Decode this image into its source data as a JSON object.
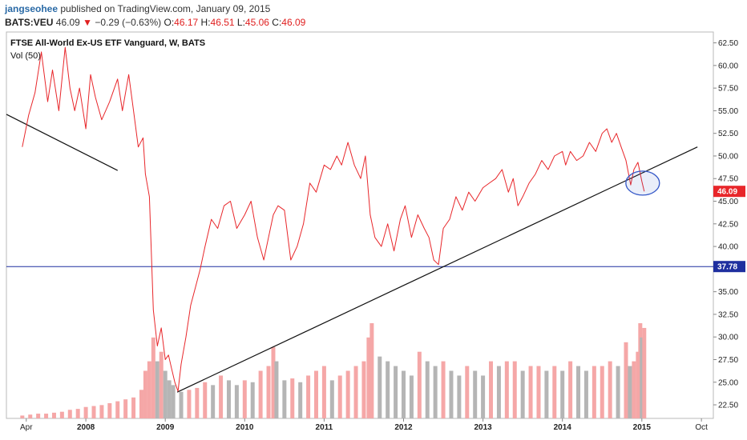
{
  "header": {
    "author": "jangseohee",
    "published": "published on TradingView.com, January 09, 2015",
    "symbol": "BATS:VEU",
    "last": "46.09",
    "change_arrow": "▼",
    "change": "−0.29 (−0.63%)",
    "open_label": "O:",
    "open": "46.17",
    "high_label": "H:",
    "high": "46.51",
    "low_label": "L:",
    "low": "45.06",
    "close_label": "C:",
    "close": "46.09"
  },
  "colors": {
    "price_line": "#e8262a",
    "trend_line": "#111111",
    "horizontal_line": "#1f2f9f",
    "circle": "#3558c8",
    "volume_up": "#f5a7a7",
    "volume_down": "#b5b5b5",
    "last_badge": "#e8262a",
    "level_badge": "#1f2f9f"
  },
  "chart_data": {
    "type": "line",
    "title": "FTSE All-World Ex-US ETF Vanguard, W, BATS",
    "subtitle": "Vol (50)",
    "x_ticks": [
      "Apr",
      "2008",
      "2009",
      "2010",
      "2011",
      "2012",
      "2013",
      "2014",
      "2015",
      "Oct"
    ],
    "x_tick_values": [
      2007.25,
      2008.0,
      2009.0,
      2010.0,
      2011.0,
      2012.0,
      2013.0,
      2014.0,
      2015.0,
      2015.75
    ],
    "xlim": [
      2007.0,
      2015.9
    ],
    "ylim": [
      21.0,
      63.7
    ],
    "y_ticks": [
      "22.50",
      "25.00",
      "27.50",
      "30.00",
      "32.50",
      "35.00",
      "37.50",
      "40.00",
      "42.50",
      "45.00",
      "47.50",
      "50.00",
      "52.50",
      "55.00",
      "57.50",
      "60.00",
      "62.50"
    ],
    "y_tick_values": [
      22.5,
      25,
      27.5,
      30,
      32.5,
      35,
      37.5,
      40,
      42.5,
      45,
      47.5,
      50,
      52.5,
      55,
      57.5,
      60,
      62.5
    ],
    "last_price_label": "46.09",
    "last_price": 46.09,
    "horizontal_level_label": "37.78",
    "horizontal_level": 37.78,
    "series": [
      {
        "x": [
          2007.2,
          2007.28,
          2007.36,
          2007.44,
          2007.52,
          2007.58,
          2007.66,
          2007.74,
          2007.8,
          2007.86,
          2007.92,
          2008.0,
          2008.06,
          2008.12,
          2008.2,
          2008.3,
          2008.4,
          2008.46,
          2008.54,
          2008.6,
          2008.66,
          2008.72,
          2008.75,
          2008.8,
          2008.85,
          2008.9,
          2008.95,
          2009.0,
          2009.04,
          2009.08,
          2009.12,
          2009.16,
          2009.2,
          2009.26,
          2009.32,
          2009.38,
          2009.44,
          2009.5,
          2009.58,
          2009.66,
          2009.74,
          2009.82,
          2009.9,
          2010.0,
          2010.08,
          2010.16,
          2010.24,
          2010.3,
          2010.36,
          2010.42,
          2010.5,
          2010.58,
          2010.66,
          2010.74,
          2010.82,
          2010.9,
          2011.0,
          2011.08,
          2011.16,
          2011.22,
          2011.3,
          2011.38,
          2011.46,
          2011.52,
          2011.58,
          2011.64,
          2011.72,
          2011.8,
          2011.88,
          2011.96,
          2012.02,
          2012.1,
          2012.18,
          2012.26,
          2012.32,
          2012.38,
          2012.44,
          2012.5,
          2012.58,
          2012.66,
          2012.74,
          2012.82,
          2012.9,
          2013.0,
          2013.08,
          2013.16,
          2013.24,
          2013.32,
          2013.38,
          2013.44,
          2013.5,
          2013.58,
          2013.66,
          2013.74,
          2013.82,
          2013.9,
          2014.0,
          2014.04,
          2014.1,
          2014.18,
          2014.26,
          2014.34,
          2014.42,
          2014.5,
          2014.56,
          2014.62,
          2014.68,
          2014.74,
          2014.8,
          2014.86,
          2014.9,
          2014.95,
          2015.0,
          2015.03
        ],
        "values": [
          51.0,
          54.5,
          57.0,
          61.5,
          56.0,
          59.5,
          55.0,
          62.0,
          57.5,
          55.0,
          57.5,
          53.0,
          59.0,
          56.5,
          54.0,
          56.0,
          58.5,
          55.0,
          59.0,
          55.0,
          51.0,
          52.0,
          48.0,
          45.5,
          33.0,
          29.0,
          31.0,
          27.5,
          28.0,
          26.5,
          25.0,
          24.0,
          27.0,
          30.0,
          33.5,
          35.5,
          37.5,
          40.0,
          43.0,
          42.0,
          44.5,
          45.0,
          42.0,
          43.5,
          45.0,
          41.0,
          38.5,
          41.0,
          43.5,
          44.5,
          44.0,
          38.5,
          40.0,
          42.5,
          47.0,
          46.0,
          49.0,
          48.5,
          50.0,
          49.0,
          51.5,
          49.0,
          47.5,
          50.0,
          43.5,
          41.0,
          40.0,
          42.5,
          39.5,
          43.0,
          44.5,
          41.0,
          43.5,
          42.0,
          41.0,
          38.5,
          38.0,
          42.0,
          43.0,
          45.5,
          44.0,
          46.0,
          45.0,
          46.5,
          47.0,
          47.5,
          48.5,
          46.0,
          47.5,
          44.5,
          45.5,
          47.0,
          48.0,
          49.5,
          48.5,
          50.0,
          50.5,
          49.0,
          50.5,
          49.5,
          50.0,
          51.5,
          50.5,
          52.5,
          53.0,
          51.5,
          52.5,
          51.0,
          49.5,
          46.8,
          48.5,
          49.3,
          47.2,
          46.09
        ]
      }
    ],
    "volume": {
      "x": [
        2007.2,
        2007.3,
        2007.4,
        2007.5,
        2007.6,
        2007.7,
        2007.8,
        2007.9,
        2008.0,
        2008.1,
        2008.2,
        2008.3,
        2008.4,
        2008.5,
        2008.6,
        2008.7,
        2008.75,
        2008.8,
        2008.85,
        2008.9,
        2008.95,
        2009.0,
        2009.05,
        2009.1,
        2009.2,
        2009.3,
        2009.4,
        2009.5,
        2009.6,
        2009.7,
        2009.8,
        2009.9,
        2010.0,
        2010.1,
        2010.2,
        2010.3,
        2010.36,
        2010.4,
        2010.5,
        2010.6,
        2010.7,
        2010.8,
        2010.9,
        2011.0,
        2011.1,
        2011.2,
        2011.3,
        2011.4,
        2011.5,
        2011.56,
        2011.6,
        2011.7,
        2011.8,
        2011.9,
        2012.0,
        2012.1,
        2012.2,
        2012.3,
        2012.4,
        2012.5,
        2012.6,
        2012.7,
        2012.8,
        2012.9,
        2013.0,
        2013.1,
        2013.2,
        2013.3,
        2013.4,
        2013.5,
        2013.6,
        2013.7,
        2013.8,
        2013.9,
        2014.0,
        2014.1,
        2014.2,
        2014.3,
        2014.4,
        2014.5,
        2014.6,
        2014.7,
        2014.8,
        2014.85,
        2014.9,
        2014.95,
        2014.98,
        2015.0,
        2015.03
      ],
      "values": [
        0.03,
        0.04,
        0.05,
        0.05,
        0.06,
        0.07,
        0.09,
        0.1,
        0.12,
        0.13,
        0.14,
        0.16,
        0.18,
        0.2,
        0.22,
        0.3,
        0.5,
        0.6,
        0.85,
        0.6,
        0.7,
        0.5,
        0.4,
        0.35,
        0.28,
        0.3,
        0.32,
        0.38,
        0.35,
        0.45,
        0.4,
        0.35,
        0.4,
        0.38,
        0.5,
        0.55,
        0.75,
        0.6,
        0.4,
        0.42,
        0.38,
        0.45,
        0.5,
        0.55,
        0.4,
        0.45,
        0.5,
        0.55,
        0.6,
        0.85,
        1.0,
        0.65,
        0.6,
        0.55,
        0.5,
        0.45,
        0.7,
        0.6,
        0.55,
        0.6,
        0.5,
        0.45,
        0.55,
        0.5,
        0.45,
        0.6,
        0.55,
        0.6,
        0.6,
        0.5,
        0.55,
        0.55,
        0.5,
        0.55,
        0.5,
        0.6,
        0.55,
        0.5,
        0.55,
        0.55,
        0.6,
        0.55,
        0.8,
        0.55,
        0.6,
        0.7,
        1.0,
        0.85,
        0.95
      ]
    },
    "trend_lines": [
      {
        "x1": 2007.0,
        "y1": 54.6,
        "x2": 2008.4,
        "y2": 48.4
      },
      {
        "x1": 2009.15,
        "y1": 23.9,
        "x2": 2015.7,
        "y2": 51.0
      }
    ],
    "circle_annotation": {
      "x": 2014.98,
      "y": 47.0
    }
  }
}
